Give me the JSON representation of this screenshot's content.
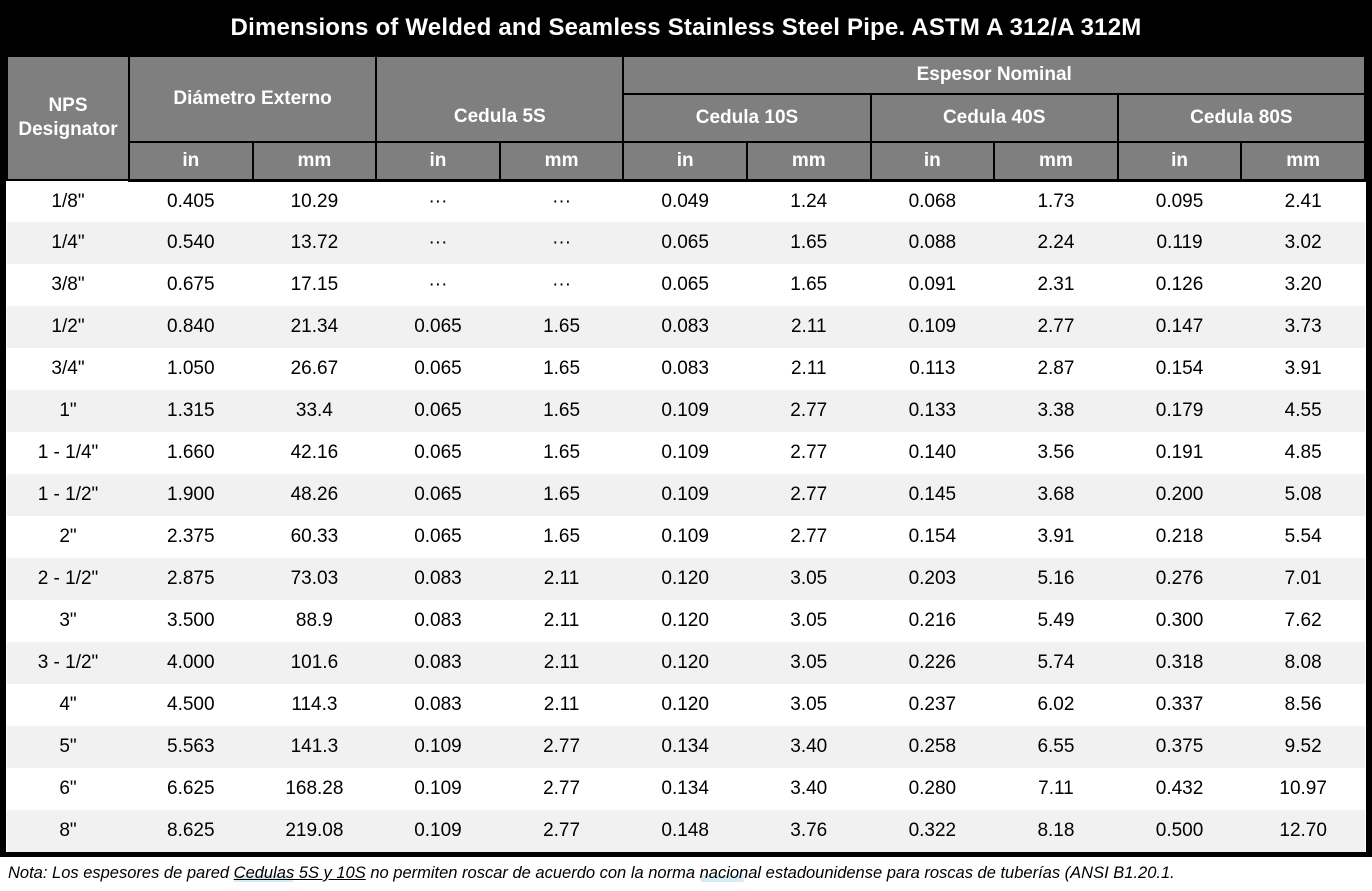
{
  "table": {
    "title": "Dimensions of Welded and Seamless Stainless Steel Pipe. ASTM A 312/A 312M",
    "header": {
      "nps": "NPS Designator",
      "diametro_externo": "Diámetro Externo",
      "cedula_5s": "Cedula 5S",
      "espesor_nominal": "Espesor Nominal",
      "cedula_10s": "Cedula 10S",
      "cedula_40s": "Cedula 40S",
      "cedula_80s": "Cedula 80S"
    },
    "unit_row": [
      "in",
      "mm",
      "in",
      "mm",
      "in",
      "mm",
      "in",
      "mm",
      "in",
      "mm"
    ],
    "columns": [
      "NPS Designator",
      "Diámetro Externo in",
      "Diámetro Externo mm",
      "Cedula 5S in",
      "Cedula 5S mm",
      "Cedula 10S in",
      "Cedula 10S mm",
      "Cedula 40S in",
      "Cedula 40S mm",
      "Cedula 80S in",
      "Cedula 80S mm"
    ],
    "rows": [
      {
        "nps": "1/8\"",
        "values": [
          "0.405",
          "10.29",
          "···",
          "···",
          "0.049",
          "1.24",
          "0.068",
          "1.73",
          "0.095",
          "2.41"
        ]
      },
      {
        "nps": "1/4\"",
        "values": [
          "0.540",
          "13.72",
          "···",
          "···",
          "0.065",
          "1.65",
          "0.088",
          "2.24",
          "0.119",
          "3.02"
        ]
      },
      {
        "nps": "3/8\"",
        "values": [
          "0.675",
          "17.15",
          "···",
          "···",
          "0.065",
          "1.65",
          "0.091",
          "2.31",
          "0.126",
          "3.20"
        ]
      },
      {
        "nps": "1/2\"",
        "values": [
          "0.840",
          "21.34",
          "0.065",
          "1.65",
          "0.083",
          "2.11",
          "0.109",
          "2.77",
          "0.147",
          "3.73"
        ]
      },
      {
        "nps": "3/4\"",
        "values": [
          "1.050",
          "26.67",
          "0.065",
          "1.65",
          "0.083",
          "2.11",
          "0.113",
          "2.87",
          "0.154",
          "3.91"
        ]
      },
      {
        "nps": "1\"",
        "values": [
          "1.315",
          "33.4",
          "0.065",
          "1.65",
          "0.109",
          "2.77",
          "0.133",
          "3.38",
          "0.179",
          "4.55"
        ]
      },
      {
        "nps": "1 - 1/4\"",
        "values": [
          "1.660",
          "42.16",
          "0.065",
          "1.65",
          "0.109",
          "2.77",
          "0.140",
          "3.56",
          "0.191",
          "4.85"
        ]
      },
      {
        "nps": "1 - 1/2\"",
        "values": [
          "1.900",
          "48.26",
          "0.065",
          "1.65",
          "0.109",
          "2.77",
          "0.145",
          "3.68",
          "0.200",
          "5.08"
        ]
      },
      {
        "nps": "2\"",
        "values": [
          "2.375",
          "60.33",
          "0.065",
          "1.65",
          "0.109",
          "2.77",
          "0.154",
          "3.91",
          "0.218",
          "5.54"
        ]
      },
      {
        "nps": "2 - 1/2\"",
        "values": [
          "2.875",
          "73.03",
          "0.083",
          "2.11",
          "0.120",
          "3.05",
          "0.203",
          "5.16",
          "0.276",
          "7.01"
        ]
      },
      {
        "nps": "3\"",
        "values": [
          "3.500",
          "88.9",
          "0.083",
          "2.11",
          "0.120",
          "3.05",
          "0.216",
          "5.49",
          "0.300",
          "7.62"
        ]
      },
      {
        "nps": "3 - 1/2\"",
        "values": [
          "4.000",
          "101.6",
          "0.083",
          "2.11",
          "0.120",
          "3.05",
          "0.226",
          "5.74",
          "0.318",
          "8.08"
        ]
      },
      {
        "nps": "4\"",
        "values": [
          "4.500",
          "114.3",
          "0.083",
          "2.11",
          "0.120",
          "3.05",
          "0.237",
          "6.02",
          "0.337",
          "8.56"
        ]
      },
      {
        "nps": "5\"",
        "values": [
          "5.563",
          "141.3",
          "0.109",
          "2.77",
          "0.134",
          "3.40",
          "0.258",
          "6.55",
          "0.375",
          "9.52"
        ]
      },
      {
        "nps": "6\"",
        "values": [
          "6.625",
          "168.28",
          "0.109",
          "2.77",
          "0.134",
          "3.40",
          "0.280",
          "7.11",
          "0.432",
          "10.97"
        ]
      },
      {
        "nps": "8\"",
        "values": [
          "8.625",
          "219.08",
          "0.109",
          "2.77",
          "0.148",
          "3.76",
          "0.322",
          "8.18",
          "0.500",
          "12.70"
        ]
      }
    ],
    "note": {
      "prefix": "Nota: Los espesores de pared ",
      "underlined": "Cedulas 5S y 10S",
      "middle": " no permiten roscar de acuerdo con la norma ",
      "highlighted_word": "nacional",
      "suffix": " estadounidense para roscas de tuberías (ANSI B1.20.1."
    }
  },
  "colors": {
    "title_bg": "#000000",
    "title_text": "#ffffff",
    "header_bg": "#7f7f7f",
    "header_text": "#ffffff",
    "row_alt_bg": "#f1f1f1",
    "data_text": "#000000",
    "border": "#000000",
    "proofing_highlight": "#d6ecf4"
  }
}
